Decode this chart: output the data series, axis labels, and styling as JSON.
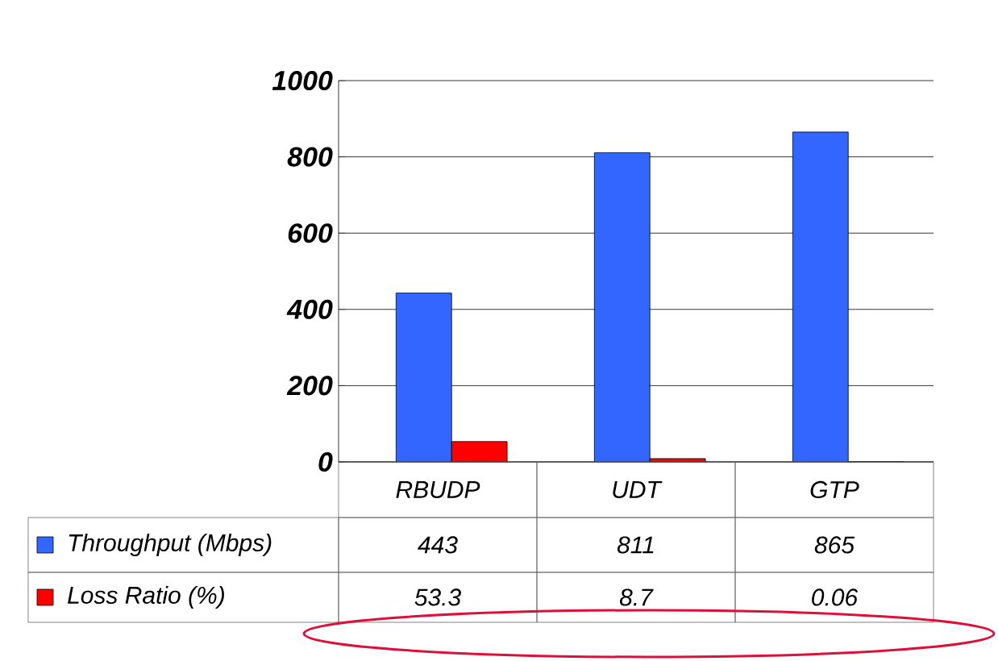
{
  "chart_data": {
    "type": "bar",
    "categories": [
      "RBUDP",
      "UDT",
      "GTP"
    ],
    "series": [
      {
        "name": "Throughput (Mbps)",
        "color": "#3366ff",
        "values": [
          443,
          811,
          865
        ]
      },
      {
        "name": "Loss Ratio (%)",
        "color": "#ff0000",
        "values": [
          53.3,
          8.7,
          0.06
        ]
      }
    ],
    "ylim": [
      0,
      1000
    ],
    "yticks": [
      0,
      200,
      400,
      600,
      800,
      1000
    ],
    "grid": "y",
    "legend": "bottom left",
    "data_labels": true
  }
}
